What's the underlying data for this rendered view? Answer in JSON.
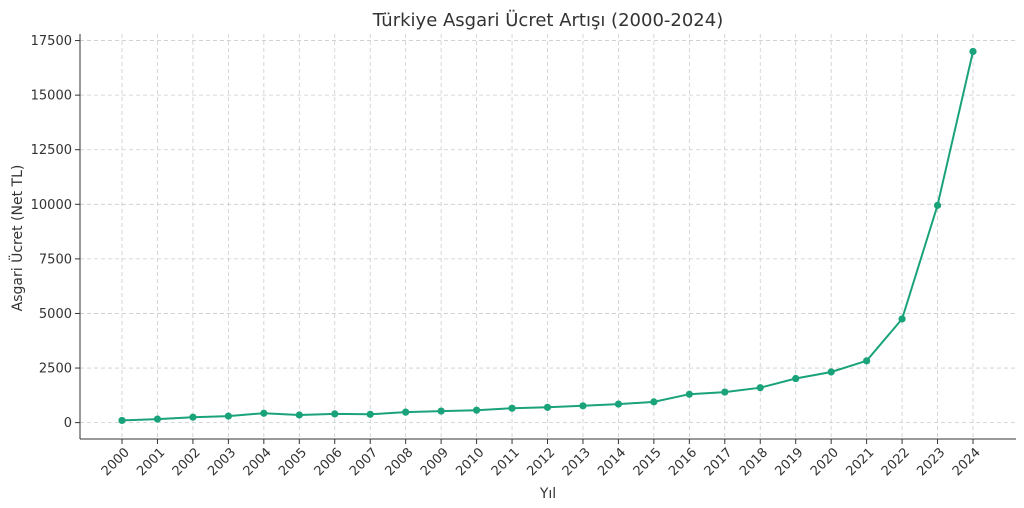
{
  "chart_data": {
    "type": "line",
    "title": "Türkiye Asgari Ücret Artışı (2000-2024)",
    "xlabel": "Yıl",
    "ylabel": "Asgari Ücret (Net TL)",
    "x": [
      "2000",
      "2001",
      "2002",
      "2003",
      "2004",
      "2005",
      "2006",
      "2007",
      "2008",
      "2009",
      "2010",
      "2011",
      "2012",
      "2013",
      "2014",
      "2015",
      "2016",
      "2017",
      "2018",
      "2019",
      "2020",
      "2021",
      "2022",
      "2023",
      "2024"
    ],
    "series": [
      {
        "color": "#1aa37a",
        "values": [
          100,
          160,
          250,
          300,
          430,
          350,
          400,
          380,
          480,
          530,
          570,
          660,
          700,
          770,
          850,
          950,
          1300,
          1400,
          1600,
          2020,
          2320,
          2830,
          4750,
          9950,
          17000
        ]
      }
    ],
    "yticks": [
      0,
      2500,
      5000,
      7500,
      10000,
      12500,
      15000,
      17500
    ],
    "ylim": [
      -750,
      17800
    ],
    "grid": true
  }
}
